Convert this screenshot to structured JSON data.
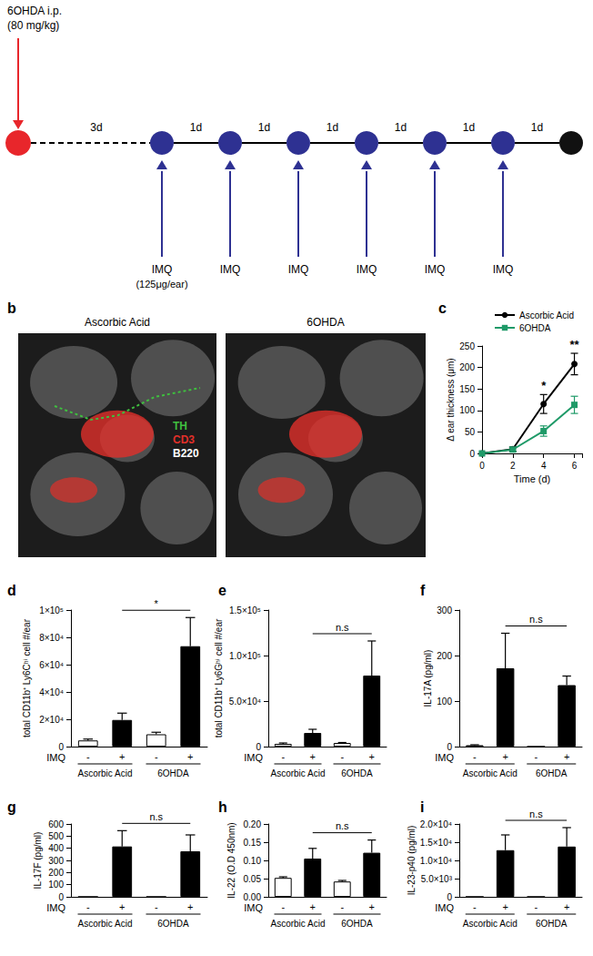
{
  "diagram": {
    "drug": "6OHDA i.p.",
    "dose": "(80 mg/kg)",
    "wait": "3d",
    "interval": "1d",
    "treatment": "IMQ",
    "treatment_dose": "(125μg/ear)",
    "treatment_count": 6
  },
  "image_panel": {
    "title": "b",
    "images": [
      "Ascorbic Acid",
      "6OHDA"
    ],
    "stains": [
      {
        "name": "TH",
        "color": "#3fbf3f"
      },
      {
        "name": "CD3",
        "color": "#e0302a"
      },
      {
        "name": "B220",
        "color": "#ffffff"
      }
    ]
  },
  "chart_data": [
    {
      "type": "line",
      "title": "c",
      "x": [
        0,
        2,
        4,
        6
      ],
      "series": [
        {
          "name": "Ascorbic Acid",
          "color": "#000000",
          "marker": "circle",
          "values": [
            0,
            10,
            115,
            208
          ],
          "errors": [
            0,
            5,
            22,
            25
          ]
        },
        {
          "name": "6OHDA",
          "color": "#1f9a68",
          "marker": "square",
          "values": [
            0,
            9,
            52,
            113
          ],
          "errors": [
            0,
            5,
            12,
            20
          ]
        }
      ],
      "xlabel": "Time (d)",
      "ylabel": "Δ ear thickness (μm)",
      "xlim": [
        0,
        6.5
      ],
      "xticks": [
        0,
        2,
        4,
        6
      ],
      "ylim": [
        0,
        250
      ],
      "yticks": [
        0,
        50,
        100,
        150,
        200,
        250
      ],
      "legend": "top-left",
      "annotations": [
        {
          "x": 4,
          "text": "*"
        },
        {
          "x": 6,
          "text": "**"
        }
      ]
    },
    {
      "type": "bar",
      "title": "d",
      "categories": [
        "-",
        "+",
        "-",
        "+"
      ],
      "category_label": "IMQ",
      "groups": [
        "Ascorbic Acid",
        "6OHDA"
      ],
      "values": [
        4500,
        19500,
        9000,
        73500
      ],
      "errors": [
        1000,
        5000,
        1500,
        21000
      ],
      "colors": [
        "#ffffff",
        "#000000",
        "#ffffff",
        "#000000"
      ],
      "ylabel": "total CD11b⁺ Ly6Cʰⁱ cell #/ear",
      "ylim": [
        0,
        100000
      ],
      "yticks": [
        0,
        {
          "value": 20000,
          "label": "2×10⁴"
        },
        {
          "value": 40000,
          "label": "4×10⁴"
        },
        {
          "value": 60000,
          "label": "6×10⁴"
        },
        {
          "value": 80000,
          "label": "8×10⁴"
        },
        {
          "value": 100000,
          "label": "1×10⁵"
        }
      ],
      "comparison": {
        "between": [
          1,
          3
        ],
        "text": "*"
      }
    },
    {
      "type": "bar",
      "title": "e",
      "categories": [
        "-",
        "+",
        "-",
        "+"
      ],
      "category_label": "IMQ",
      "groups": [
        "Ascorbic Acid",
        "6OHDA"
      ],
      "values": [
        3000,
        15000,
        4000,
        78000
      ],
      "errors": [
        1000,
        4000,
        500,
        38000
      ],
      "colors": [
        "#ffffff",
        "#000000",
        "#ffffff",
        "#000000"
      ],
      "ylabel": "total CD11b⁺ Ly6Gʰⁱ cell #/ear",
      "ylim": [
        0,
        150000
      ],
      "yticks": [
        0,
        {
          "value": 50000,
          "label": "5.0×10⁴"
        },
        {
          "value": 100000,
          "label": "1.0×10⁵"
        },
        {
          "value": 150000,
          "label": "1.5×10⁵"
        }
      ],
      "comparison": {
        "between": [
          1,
          3
        ],
        "text": "n.s"
      }
    },
    {
      "type": "bar",
      "title": "f",
      "categories": [
        "-",
        "+",
        "-",
        "+"
      ],
      "category_label": "IMQ",
      "groups": [
        "Ascorbic Acid",
        "6OHDA"
      ],
      "values": [
        3,
        172,
        0,
        135
      ],
      "errors": [
        1,
        77,
        0,
        20
      ],
      "colors": [
        "#ffffff",
        "#000000",
        "#ffffff",
        "#000000"
      ],
      "ylabel": "IL-17A (pg/ml)",
      "ylim": [
        0,
        300
      ],
      "yticks": [
        0,
        100,
        200,
        300
      ],
      "comparison": {
        "between": [
          1,
          3
        ],
        "text": "n.s"
      }
    },
    {
      "type": "bar",
      "title": "g",
      "categories": [
        "-",
        "+",
        "-",
        "+"
      ],
      "category_label": "IMQ",
      "groups": [
        "Ascorbic Acid",
        "6OHDA"
      ],
      "values": [
        0,
        415,
        0,
        375
      ],
      "errors": [
        0,
        130,
        0,
        135
      ],
      "colors": [
        "#ffffff",
        "#000000",
        "#ffffff",
        "#000000"
      ],
      "ylabel": "IL-17F (pg/ml)",
      "ylim": [
        0,
        600
      ],
      "yticks": [
        0,
        100,
        200,
        300,
        400,
        500,
        600
      ],
      "comparison": {
        "between": [
          1,
          3
        ],
        "text": "n.s"
      }
    },
    {
      "type": "bar",
      "title": "h",
      "categories": [
        "-",
        "+",
        "-",
        "+"
      ],
      "category_label": "IMQ",
      "groups": [
        "Ascorbic Acid",
        "6OHDA"
      ],
      "values": [
        0.052,
        0.105,
        0.042,
        0.121
      ],
      "errors": [
        0.003,
        0.028,
        0.003,
        0.035
      ],
      "colors": [
        "#ffffff",
        "#000000",
        "#ffffff",
        "#000000"
      ],
      "ylabel": "IL-22 (O.D 450nm)",
      "ylim": [
        0,
        0.2
      ],
      "yticks": [
        {
          "value": 0,
          "label": "0.00"
        },
        0.05,
        {
          "value": 0.1,
          "label": "0.10"
        },
        0.15,
        {
          "value": 0.2,
          "label": "0.20"
        }
      ],
      "comparison": {
        "between": [
          1,
          3
        ],
        "text": "n.s"
      }
    },
    {
      "type": "bar",
      "title": "i",
      "categories": [
        "-",
        "+",
        "-",
        "+"
      ],
      "category_label": "IMQ",
      "groups": [
        "Ascorbic Acid",
        "6OHDA"
      ],
      "values": [
        0,
        12800,
        0,
        13800
      ],
      "errors": [
        0,
        4200,
        0,
        5200
      ],
      "colors": [
        "#ffffff",
        "#000000",
        "#ffffff",
        "#000000"
      ],
      "ylabel": "IL-23-p40 (pg/ml)",
      "ylim": [
        0,
        20000
      ],
      "yticks": [
        0,
        {
          "value": 5000,
          "label": "5.0×10³"
        },
        {
          "value": 10000,
          "label": "1.0×10⁴"
        },
        {
          "value": 15000,
          "label": "1.5×10⁴"
        },
        {
          "value": 20000,
          "label": "2.0×10⁴"
        }
      ],
      "comparison": {
        "between": [
          1,
          3
        ],
        "text": "n.s"
      }
    }
  ]
}
